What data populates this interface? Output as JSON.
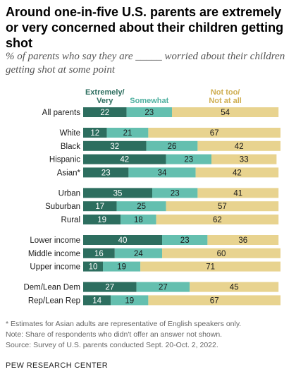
{
  "title": "Around one-in-five U.S. parents are extremely or very concerned about their children getting shot",
  "subtitle": "% of parents who say they are _____ worried about their children getting shot at some point",
  "legend": [
    {
      "line1": "Extremely/",
      "line2": "Very"
    },
    {
      "line1": "Somewhat",
      "line2": ""
    },
    {
      "line1": "Not too/",
      "line2": "Not at all"
    }
  ],
  "colors": {
    "extremely_very": "#2d6e5f",
    "somewhat": "#64bfaf",
    "not_too": "#e8d38f",
    "label_extremely_very": "#2d6e5f",
    "label_somewhat": "#4fb0a0",
    "label_not_too": "#cfae52"
  },
  "chart_data": {
    "type": "bar",
    "orientation": "horizontal",
    "stacked": true,
    "categories": [
      "All parents",
      "White",
      "Black",
      "Hispanic",
      "Asian*",
      "Urban",
      "Suburban",
      "Rural",
      "Lower income",
      "Middle income",
      "Upper income",
      "Dem/Lean Dem",
      "Rep/Lean Rep"
    ],
    "groups": [
      [
        0
      ],
      [
        1,
        2,
        3,
        4
      ],
      [
        5,
        6,
        7
      ],
      [
        8,
        9,
        10
      ],
      [
        11,
        12
      ]
    ],
    "series": [
      {
        "name": "Extremely/Very",
        "values": [
          22,
          12,
          32,
          42,
          23,
          35,
          17,
          19,
          40,
          16,
          10,
          27,
          14
        ]
      },
      {
        "name": "Somewhat",
        "values": [
          23,
          21,
          26,
          23,
          34,
          23,
          25,
          18,
          23,
          24,
          19,
          27,
          19
        ]
      },
      {
        "name": "Not too/Not at all",
        "values": [
          54,
          67,
          42,
          33,
          42,
          41,
          57,
          62,
          36,
          60,
          71,
          45,
          67
        ]
      }
    ],
    "xlim": [
      0,
      100
    ]
  },
  "notes": {
    "asian": "* Estimates for Asian adults are representative of English speakers only.",
    "note": "Note: Share of respondents who didn't offer an answer not shown.",
    "source": "Source: Survey of U.S. parents conducted Sept. 20-Oct. 2, 2022."
  },
  "org": "PEW RESEARCH CENTER"
}
